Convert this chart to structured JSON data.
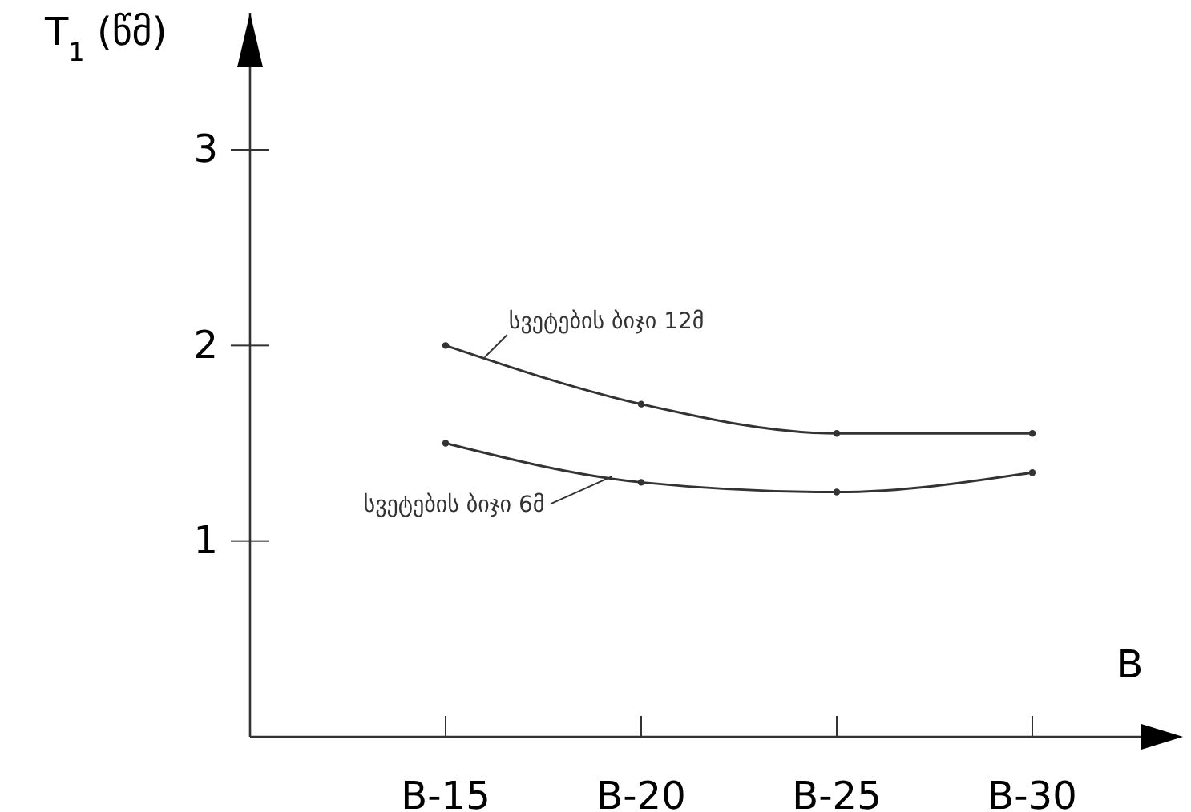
{
  "chart_data": {
    "type": "line",
    "ylabel": "T$_{1}$ (წმ)",
    "xlabel": "B",
    "categories": [
      "B-15",
      "B-20",
      "B-25",
      "B-30"
    ],
    "ylim": [
      0,
      3.7
    ],
    "yticks": [
      1,
      2,
      3
    ],
    "grid": false,
    "marker": "circle",
    "line_style": "solid",
    "series": [
      {
        "name": "სვეტების ბიჯი 12მ",
        "color": "#333333",
        "values": [
          2.0,
          1.7,
          1.55,
          1.55
        ]
      },
      {
        "name": "სვეტების ბიჯი 6მ",
        "color": "#333333",
        "values": [
          1.5,
          1.3,
          1.25,
          1.35
        ]
      }
    ]
  }
}
